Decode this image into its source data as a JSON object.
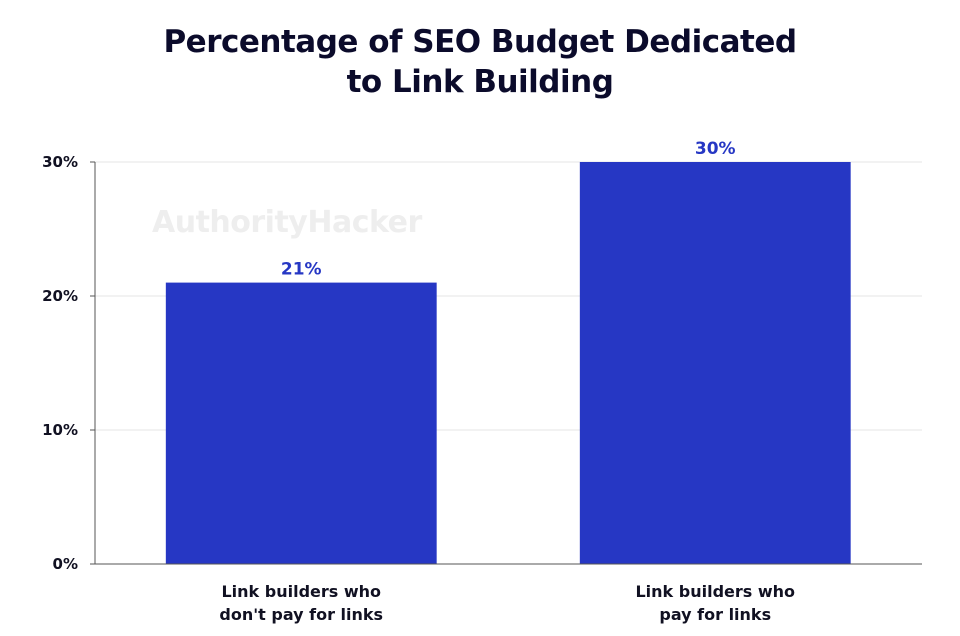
{
  "chart_data": {
    "type": "bar",
    "title_lines": [
      "Percentage of SEO Budget Dedicated",
      "to Link Building"
    ],
    "categories": [
      [
        "Link builders who",
        "don't pay for links"
      ],
      [
        "Link builders who",
        "pay for links"
      ]
    ],
    "values": [
      21,
      30
    ],
    "data_labels": [
      "21%",
      "30%"
    ],
    "yticks": [
      0,
      10,
      20,
      30
    ],
    "ytick_labels": [
      "0%",
      "10%",
      "20%",
      "30%"
    ],
    "ylim": [
      0,
      30
    ],
    "xlabel": "",
    "ylabel": "",
    "grid": true,
    "bar_color": "#2637c4",
    "label_color": "#2637c4",
    "watermark": "AuthorityHacker"
  }
}
